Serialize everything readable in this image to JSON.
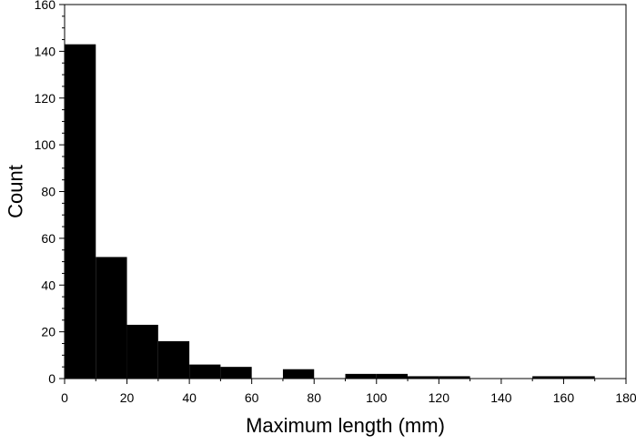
{
  "chart_data": {
    "type": "bar",
    "title": "",
    "xlabel": "Maximum length (mm)",
    "ylabel": "Count",
    "xlim": [
      0,
      180
    ],
    "ylim": [
      0,
      160
    ],
    "x_ticks": [
      0,
      20,
      40,
      60,
      80,
      100,
      120,
      140,
      160,
      180
    ],
    "y_ticks": [
      0,
      20,
      40,
      60,
      80,
      100,
      120,
      140,
      160
    ],
    "grid": false,
    "legend": "none",
    "bar_color": "#000000",
    "bins": [
      {
        "start": 0,
        "end": 10,
        "count": 143
      },
      {
        "start": 10,
        "end": 20,
        "count": 52
      },
      {
        "start": 20,
        "end": 30,
        "count": 23
      },
      {
        "start": 30,
        "end": 40,
        "count": 16
      },
      {
        "start": 40,
        "end": 50,
        "count": 6
      },
      {
        "start": 50,
        "end": 60,
        "count": 5
      },
      {
        "start": 60,
        "end": 70,
        "count": 0
      },
      {
        "start": 70,
        "end": 80,
        "count": 4
      },
      {
        "start": 80,
        "end": 90,
        "count": 0
      },
      {
        "start": 90,
        "end": 100,
        "count": 2
      },
      {
        "start": 100,
        "end": 110,
        "count": 2
      },
      {
        "start": 110,
        "end": 120,
        "count": 1
      },
      {
        "start": 120,
        "end": 130,
        "count": 1
      },
      {
        "start": 130,
        "end": 140,
        "count": 0
      },
      {
        "start": 140,
        "end": 150,
        "count": 0
      },
      {
        "start": 150,
        "end": 160,
        "count": 1
      },
      {
        "start": 160,
        "end": 170,
        "count": 1
      },
      {
        "start": 170,
        "end": 180,
        "count": 0
      }
    ]
  }
}
